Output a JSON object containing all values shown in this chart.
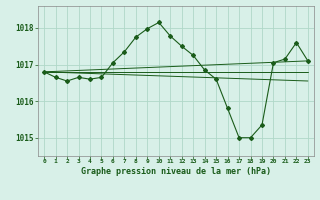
{
  "title": "Graphe pression niveau de la mer (hPa)",
  "background_color": "#d8f0e8",
  "grid_color": "#b0d8c8",
  "line_color": "#1a5c1a",
  "xlim": [
    -0.5,
    23.5
  ],
  "ylim": [
    1014.5,
    1018.6
  ],
  "yticks": [
    1015,
    1016,
    1017,
    1018
  ],
  "xticks": [
    0,
    1,
    2,
    3,
    4,
    5,
    6,
    7,
    8,
    9,
    10,
    11,
    12,
    13,
    14,
    15,
    16,
    17,
    18,
    19,
    20,
    21,
    22,
    23
  ],
  "main_x": [
    0,
    1,
    2,
    3,
    4,
    5,
    6,
    7,
    8,
    9,
    10,
    11,
    12,
    13,
    14,
    15,
    16,
    17,
    18,
    19,
    20,
    21,
    22,
    23
  ],
  "main_y": [
    1016.8,
    1016.65,
    1016.55,
    1016.65,
    1016.6,
    1016.65,
    1017.05,
    1017.35,
    1017.75,
    1017.98,
    1018.15,
    1017.78,
    1017.5,
    1017.25,
    1016.85,
    1016.6,
    1015.8,
    1015.0,
    1015.0,
    1015.35,
    1017.05,
    1017.15,
    1017.6,
    1017.1
  ],
  "fan_lines": [
    {
      "x": [
        0,
        23
      ],
      "y": [
        1016.8,
        1017.1
      ]
    },
    {
      "x": [
        0,
        23
      ],
      "y": [
        1016.8,
        1016.8
      ]
    },
    {
      "x": [
        0,
        23
      ],
      "y": [
        1016.8,
        1016.55
      ]
    }
  ]
}
